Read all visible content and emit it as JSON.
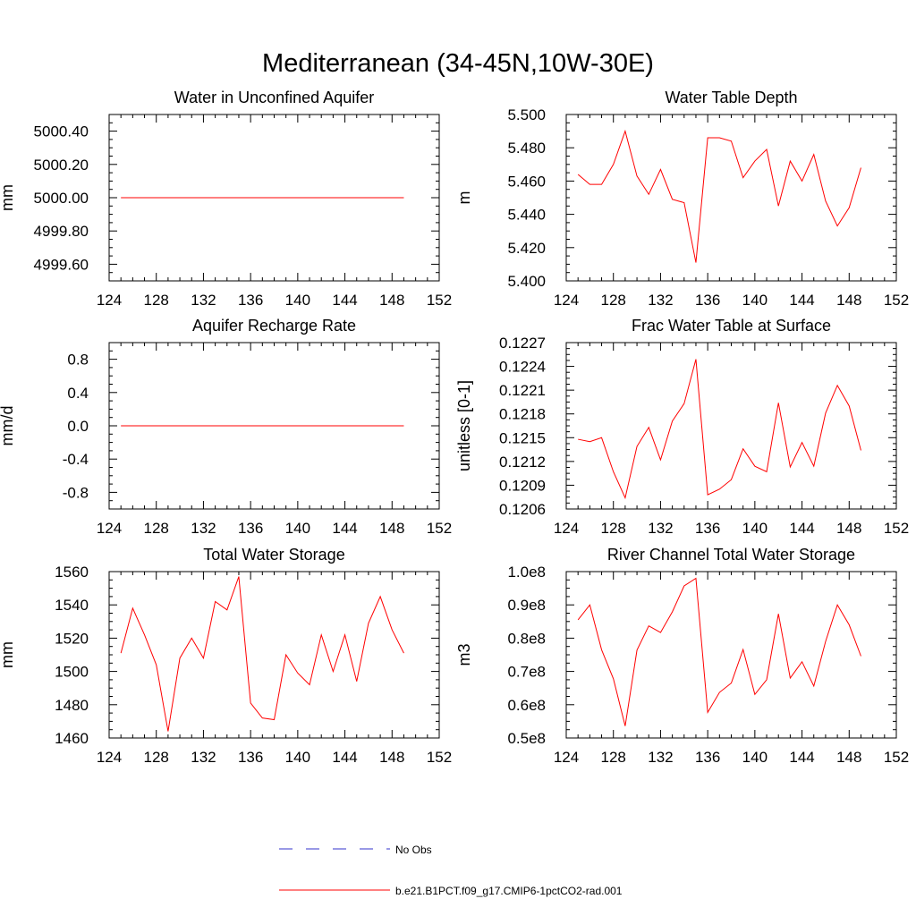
{
  "figure": {
    "title": "Mediterranean (34-45N,10W-30E)"
  },
  "legend": [
    {
      "label": "No Obs",
      "color": "#3333cc",
      "style": "dashed"
    },
    {
      "label": "b.e21.B1PCT.f09_g17.CMIP6-1pctCO2-rad.001",
      "color": "#ff0000",
      "style": "solid"
    }
  ],
  "chart_data": [
    {
      "type": "line",
      "title": "Water in Unconfined Aquifer",
      "ylabel": "mm",
      "xlim": [
        124,
        152
      ],
      "ylim": [
        4999.5,
        5000.5
      ],
      "xticks": [
        124,
        128,
        132,
        136,
        140,
        144,
        148,
        152
      ],
      "yticks": [
        4999.6,
        4999.8,
        5000.0,
        5000.2,
        5000.4
      ],
      "ytick_labels": [
        "4999.60",
        "4999.80",
        "5000.00",
        "5000.20",
        "5000.40"
      ],
      "x": [
        125,
        126,
        127,
        128,
        129,
        130,
        131,
        132,
        133,
        134,
        135,
        136,
        137,
        138,
        139,
        140,
        141,
        142,
        143,
        144,
        145,
        146,
        147,
        148,
        149
      ],
      "series": [
        {
          "values": [
            5000,
            5000,
            5000,
            5000,
            5000,
            5000,
            5000,
            5000,
            5000,
            5000,
            5000,
            5000,
            5000,
            5000,
            5000,
            5000,
            5000,
            5000,
            5000,
            5000,
            5000,
            5000,
            5000,
            5000,
            5000
          ]
        }
      ]
    },
    {
      "type": "line",
      "title": "Water Table Depth",
      "ylabel": "m",
      "xlim": [
        124,
        152
      ],
      "ylim": [
        5.4,
        5.5
      ],
      "xticks": [
        124,
        128,
        132,
        136,
        140,
        144,
        148,
        152
      ],
      "yticks": [
        5.4,
        5.42,
        5.44,
        5.46,
        5.48,
        5.5
      ],
      "ytick_labels": [
        "5.400",
        "5.420",
        "5.440",
        "5.460",
        "5.480",
        "5.500"
      ],
      "x": [
        125,
        126,
        127,
        128,
        129,
        130,
        131,
        132,
        133,
        134,
        135,
        136,
        137,
        138,
        139,
        140,
        141,
        142,
        143,
        144,
        145,
        146,
        147,
        148,
        149
      ],
      "series": [
        {
          "values": [
            5.464,
            5.458,
            5.458,
            5.47,
            5.49,
            5.463,
            5.452,
            5.467,
            5.449,
            5.447,
            5.411,
            5.486,
            5.486,
            5.484,
            5.462,
            5.472,
            5.479,
            5.445,
            5.472,
            5.46,
            5.476,
            5.448,
            5.433,
            5.444,
            5.468
          ]
        }
      ]
    },
    {
      "type": "line",
      "title": "Aquifer Recharge Rate",
      "ylabel": "mm/d",
      "xlim": [
        124,
        152
      ],
      "ylim": [
        -1.0,
        1.0
      ],
      "xticks": [
        124,
        128,
        132,
        136,
        140,
        144,
        148,
        152
      ],
      "yticks": [
        -0.8,
        -0.4,
        0.0,
        0.4,
        0.8
      ],
      "ytick_labels": [
        "-0.8",
        "-0.4",
        "0.0",
        "0.4",
        "0.8"
      ],
      "x": [
        125,
        126,
        127,
        128,
        129,
        130,
        131,
        132,
        133,
        134,
        135,
        136,
        137,
        138,
        139,
        140,
        141,
        142,
        143,
        144,
        145,
        146,
        147,
        148,
        149
      ],
      "series": [
        {
          "values": [
            0,
            0,
            0,
            0,
            0,
            0,
            0,
            0,
            0,
            0,
            0,
            0,
            0,
            0,
            0,
            0,
            0,
            0,
            0,
            0,
            0,
            0,
            0,
            0,
            0
          ]
        }
      ]
    },
    {
      "type": "line",
      "title": "Frac Water Table at Surface",
      "ylabel": "unitless [0-1]",
      "xlim": [
        124,
        152
      ],
      "ylim": [
        0.1206,
        0.1227
      ],
      "xticks": [
        124,
        128,
        132,
        136,
        140,
        144,
        148,
        152
      ],
      "yticks": [
        0.1206,
        0.1209,
        0.1212,
        0.1215,
        0.1218,
        0.1221,
        0.1224,
        0.1227
      ],
      "ytick_labels": [
        "0.1206",
        "0.1209",
        "0.1212",
        "0.1215",
        "0.1218",
        "0.1221",
        "0.1224",
        "0.1227"
      ],
      "x": [
        125,
        126,
        127,
        128,
        129,
        130,
        131,
        132,
        133,
        134,
        135,
        136,
        137,
        138,
        139,
        140,
        141,
        142,
        143,
        144,
        145,
        146,
        147,
        148,
        149
      ],
      "series": [
        {
          "values": [
            0.12148,
            0.12145,
            0.1215,
            0.12107,
            0.12074,
            0.12139,
            0.12163,
            0.12122,
            0.12171,
            0.12193,
            0.12249,
            0.12078,
            0.12085,
            0.12097,
            0.12136,
            0.12114,
            0.12107,
            0.12194,
            0.12113,
            0.12144,
            0.12114,
            0.12181,
            0.12216,
            0.1219,
            0.12134
          ]
        }
      ]
    },
    {
      "type": "line",
      "title": "Total Water Storage",
      "ylabel": "mm",
      "xlim": [
        124,
        152
      ],
      "ylim": [
        1460,
        1560
      ],
      "xticks": [
        124,
        128,
        132,
        136,
        140,
        144,
        148,
        152
      ],
      "yticks": [
        1460,
        1480,
        1500,
        1520,
        1540,
        1560
      ],
      "ytick_labels": [
        "1460",
        "1480",
        "1500",
        "1520",
        "1540",
        "1560"
      ],
      "x": [
        125,
        126,
        127,
        128,
        129,
        130,
        131,
        132,
        133,
        134,
        135,
        136,
        137,
        138,
        139,
        140,
        141,
        142,
        143,
        144,
        145,
        146,
        147,
        148,
        149
      ],
      "series": [
        {
          "values": [
            1511,
            1538,
            1522,
            1504,
            1464,
            1508,
            1520,
            1508,
            1542,
            1537,
            1557,
            1481,
            1472,
            1471,
            1510,
            1499,
            1492,
            1522,
            1500,
            1522,
            1494,
            1529,
            1545,
            1525,
            1511
          ]
        }
      ]
    },
    {
      "type": "line",
      "title": "River Channel Total Water Storage",
      "ylabel": "m3",
      "xlim": [
        124,
        152
      ],
      "ylim": [
        50000000,
        100000000
      ],
      "xticks": [
        124,
        128,
        132,
        136,
        140,
        144,
        148,
        152
      ],
      "yticks": [
        50000000,
        60000000,
        70000000,
        80000000,
        90000000,
        100000000
      ],
      "ytick_labels": [
        "0.5e8",
        "0.6e8",
        "0.7e8",
        "0.8e8",
        "0.9e8",
        "1.0e8"
      ],
      "x": [
        125,
        126,
        127,
        128,
        129,
        130,
        131,
        132,
        133,
        134,
        135,
        136,
        137,
        138,
        139,
        140,
        141,
        142,
        143,
        144,
        145,
        146,
        147,
        148,
        149
      ],
      "series": [
        {
          "values": [
            85500000,
            90000000,
            76500000,
            67800000,
            53600000,
            76400000,
            83700000,
            81700000,
            87900000,
            95700000,
            98000000,
            57700000,
            63700000,
            66500000,
            76600000,
            63100000,
            67500000,
            87300000,
            68000000,
            72900000,
            65600000,
            79000000,
            90000000,
            84000000,
            74600000
          ]
        }
      ]
    }
  ]
}
